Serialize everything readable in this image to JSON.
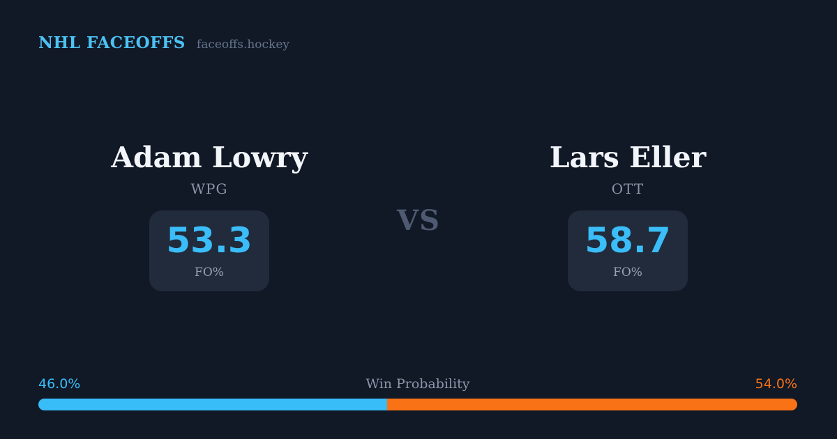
{
  "header": {
    "brand": "NHL FACEOFFS",
    "site": "faceoffs.hockey"
  },
  "matchup": {
    "vs_label": "VS",
    "players": [
      {
        "name": "Adam Lowry",
        "team": "WPG",
        "stat_value": "53.3",
        "stat_label": "FO%"
      },
      {
        "name": "Lars Eller",
        "team": "OTT",
        "stat_value": "58.7",
        "stat_label": "FO%"
      }
    ]
  },
  "win_probability": {
    "label": "Win Probability",
    "left_label": "46.0%",
    "right_label": "54.0%",
    "left_value": 46.0,
    "right_value": 54.0,
    "left_color": "#38bdf8",
    "right_color": "#f97316"
  },
  "colors": {
    "background": "#111826",
    "stat_card_background": "#212b3b",
    "accent_blue": "#3abdf8",
    "accent_orange": "#f97316",
    "brand_blue": "#4cc2f3",
    "muted_text": "#8b95a7",
    "name_text": "#f2f5fa"
  },
  "chart_data": {
    "type": "bar",
    "title": "Win Probability",
    "categories": [
      "Adam Lowry (WPG)",
      "Lars Eller (OTT)"
    ],
    "series": [
      {
        "name": "Win Probability %",
        "values": [
          46.0,
          54.0
        ]
      },
      {
        "name": "Faceoff %",
        "values": [
          53.3,
          58.7
        ]
      }
    ],
    "layout": "single horizontal 100% stacked bar, blue=left player, orange=right player, legend off, no axes",
    "colors": [
      "#38bdf8",
      "#f97316"
    ]
  }
}
